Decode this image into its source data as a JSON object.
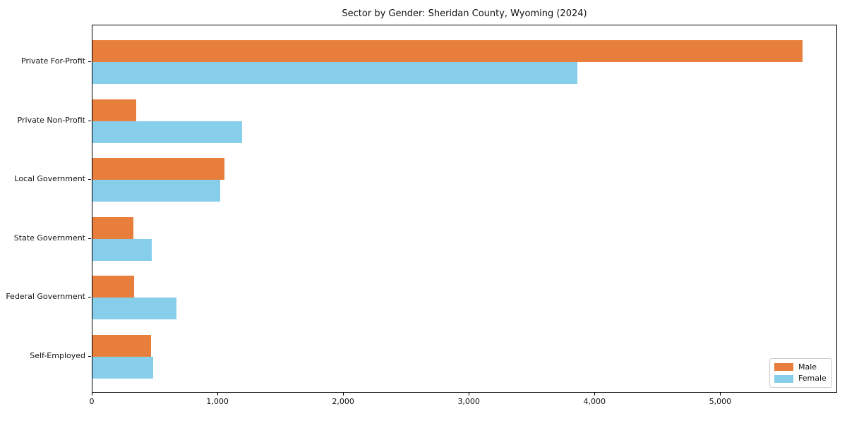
{
  "title": "Sector by Gender: Sheridan County, Wyoming (2024)",
  "colors": {
    "male": "#e87e3b",
    "female": "#87ceeb",
    "spine": "#000000",
    "background": "#ffffff",
    "legend_border": "#cccccc"
  },
  "legend": {
    "position": "lower right",
    "items": [
      {
        "label": "Male",
        "color": "#e87e3b"
      },
      {
        "label": "Female",
        "color": "#87ceeb"
      }
    ]
  },
  "chart_data": {
    "type": "bar",
    "orientation": "horizontal",
    "title": "Sector by Gender: Sheridan County, Wyoming (2024)",
    "categories": [
      "Private For-Profit",
      "Private Non-Profit",
      "Local Government",
      "State Government",
      "Federal Government",
      "Self-Employed"
    ],
    "series": [
      {
        "name": "Male",
        "color": "#e87e3b",
        "values": [
          5650,
          350,
          1050,
          325,
          330,
          465
        ]
      },
      {
        "name": "Female",
        "color": "#87ceeb",
        "values": [
          3860,
          1190,
          1015,
          470,
          670,
          485
        ]
      }
    ],
    "xlabel": "",
    "ylabel": "",
    "xlim": [
      0,
      5930
    ],
    "x_ticks": [
      0,
      1000,
      2000,
      3000,
      4000,
      5000
    ],
    "x_tick_labels": [
      "0",
      "1,000",
      "2,000",
      "3,000",
      "4,000",
      "5,000"
    ],
    "grid": false,
    "legend_position": "lower right"
  }
}
